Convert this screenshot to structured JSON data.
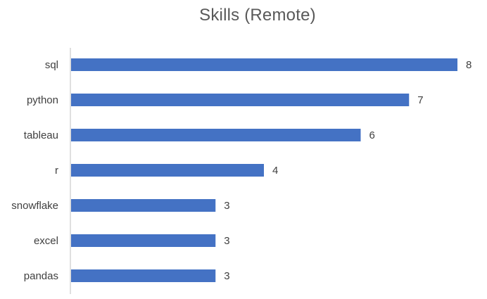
{
  "chart_data": {
    "type": "bar",
    "orientation": "horizontal",
    "title": "Skills (Remote)",
    "categories": [
      "sql",
      "python",
      "tableau",
      "r",
      "snowflake",
      "excel",
      "pandas"
    ],
    "values": [
      8,
      7,
      6,
      4,
      3,
      3,
      3
    ],
    "xlim": [
      0,
      8
    ],
    "grid": false,
    "legend": "none",
    "bar_color": "#4472C4",
    "data_labels": true
  }
}
